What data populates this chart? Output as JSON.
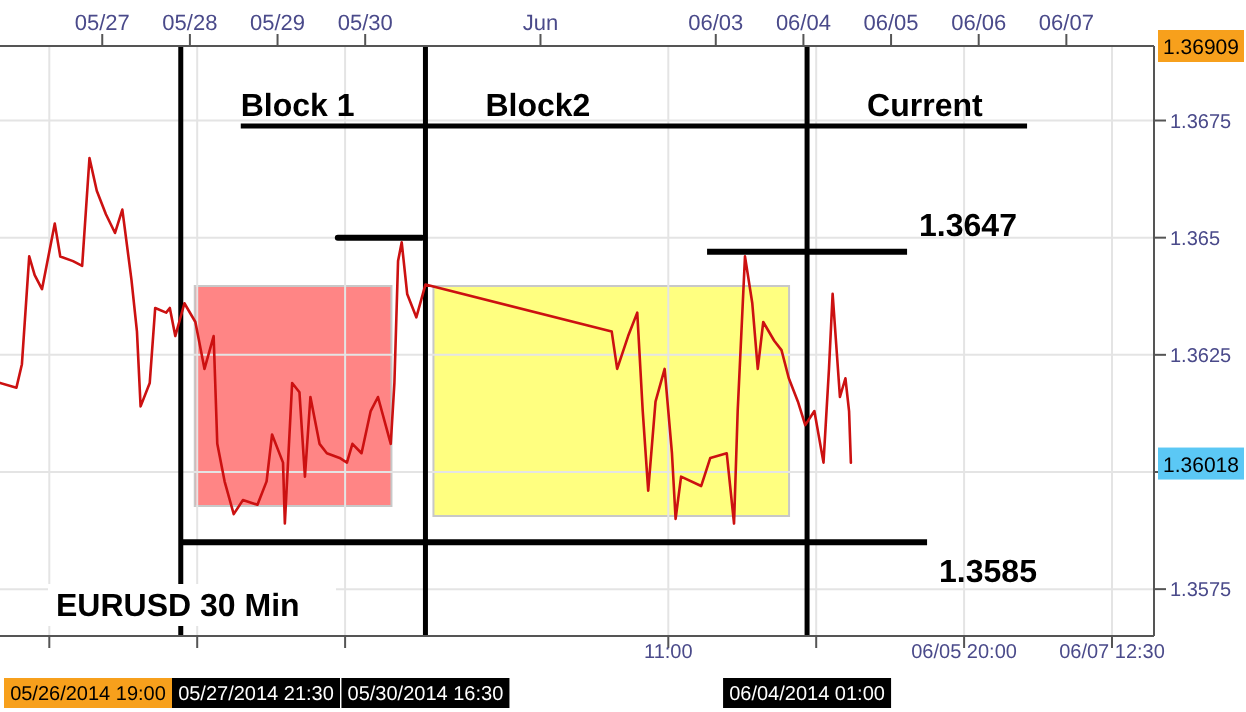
{
  "chart_data": {
    "type": "line",
    "title": "EURUSD 30 Min",
    "annotations": [
      "Block 1",
      "Block2",
      "Current",
      "05/26/2014 19:00",
      {
        "text": "1.36909",
        "y": 1.36909
      },
      {
        "text": "1.36018",
        "y": 1.36018
      }
    ],
    "x": [
      "2014-05-25T20:00",
      "2014-05-26T00:30",
      "2014-05-26T02:00",
      "2014-05-26T04:00",
      "2014-05-26T05:30",
      "2014-05-26T07:30",
      "2014-05-26T11:00",
      "2014-05-26T12:30",
      "2014-05-26T16:00",
      "2014-05-26T18:30",
      "2014-05-26T20:30",
      "2014-05-26T22:30",
      "2014-05-27T01:00",
      "2014-05-27T03:30",
      "2014-05-27T05:30",
      "2014-05-27T08:00",
      "2014-05-27T09:30",
      "2014-05-27T10:30",
      "2014-05-27T13:00",
      "2014-05-27T14:30",
      "2014-05-27T17:30",
      "2014-05-27T18:30",
      "2014-05-27T20:00",
      "2014-05-27T22:30",
      "2014-05-28T01:30",
      "2014-05-28T04:00",
      "2014-05-28T06:30",
      "2014-05-28T07:30",
      "2014-05-28T09:30",
      "2014-05-28T12:00",
      "2014-05-28T14:30",
      "2014-05-28T18:30",
      "2014-05-28T21:00",
      "2014-05-28T22:30",
      "2014-05-29T01:30",
      "2014-05-29T02:00",
      "2014-05-29T04:00",
      "2014-05-29T06:00",
      "2014-05-29T07:30",
      "2014-05-29T09:00",
      "2014-05-29T11:30",
      "2014-05-29T13:30",
      "2014-05-29T17:00",
      "2014-05-29T19:00",
      "2014-05-29T20:30",
      "2014-05-29T23:00",
      "2014-05-30T01:30",
      "2014-05-30T03:30",
      "2014-05-30T07:00",
      "2014-05-30T08:00",
      "2014-05-30T09:00",
      "2014-05-30T10:00",
      "2014-05-30T11:30",
      "2014-05-30T14:00",
      "2014-05-30T16:30",
      "2014-06-01T19:30",
      "2014-06-01T21:00",
      "2014-06-02T00:00",
      "2014-06-02T02:30",
      "2014-06-02T04:00",
      "2014-06-02T05:30",
      "2014-06-02T07:30",
      "2014-06-02T10:00",
      "2014-06-02T12:00",
      "2014-06-02T13:00",
      "2014-06-02T14:30",
      "2014-06-02T20:00",
      "2014-06-02T22:30",
      "2014-06-03T03:00",
      "2014-06-03T05:00",
      "2014-06-03T06:00",
      "2014-06-03T08:00",
      "2014-06-03T10:00",
      "2014-06-03T11:30",
      "2014-06-03T13:00",
      "2014-06-03T16:00",
      "2014-06-03T18:00",
      "2014-06-03T20:00",
      "2014-06-03T22:30",
      "2014-06-04T00:30",
      "2014-06-04T03:00",
      "2014-06-04T05:30",
      "2014-06-04T07:00",
      "2014-06-04T08:00",
      "2014-06-04T10:00",
      "2014-06-04T11:30",
      "2014-06-04T12:30",
      "2014-06-04T13:00"
    ],
    "series": [
      {
        "color": "#cc1111",
        "values": [
          1.3619,
          1.3618,
          1.3623,
          1.3646,
          1.3642,
          1.3639,
          1.3653,
          1.3646,
          1.3645,
          1.3644,
          1.3667,
          1.366,
          1.3655,
          1.3651,
          1.3656,
          1.3641,
          1.363,
          1.3614,
          1.3619,
          1.3635,
          1.3634,
          1.3635,
          1.3629,
          1.3636,
          1.3632,
          1.3622,
          1.3629,
          1.3606,
          1.3598,
          1.3591,
          1.3594,
          1.3593,
          1.3598,
          1.3608,
          1.3602,
          1.3589,
          1.3619,
          1.3617,
          1.3599,
          1.3616,
          1.3606,
          1.3604,
          1.3603,
          1.3602,
          1.3606,
          1.3604,
          1.3613,
          1.3616,
          1.3606,
          1.3619,
          1.3645,
          1.3649,
          1.3638,
          1.3633,
          1.364,
          1.363,
          1.3622,
          1.3629,
          1.3634,
          1.3613,
          1.3596,
          1.3615,
          1.3622,
          1.3604,
          1.359,
          1.3599,
          1.3597,
          1.3603,
          1.3604,
          1.3589,
          1.3613,
          1.3646,
          1.3636,
          1.3622,
          1.3632,
          1.3628,
          1.3626,
          1.362,
          1.3615,
          1.361,
          1.3613,
          1.3602,
          1.3622,
          1.3638,
          1.3616,
          1.362,
          1.3613,
          1.3602
        ]
      },
      {
        "type": "line",
        "color": "#000000",
        "x": [
          "2014-05-29T16:30",
          "2014-05-30T15:30"
        ],
        "values": [
          1.365,
          1.365
        ]
      }
    ],
    "xlim": [
      "2014-05-25T20:00",
      "2014-06-08T00:00"
    ],
    "xticks": [
      {
        "value": "2014-05-26T09:30",
        "label": null
      },
      {
        "value": "2014-05-28T02:00",
        "label": null
      },
      {
        "value": "2014-05-29T18:30",
        "label": null
      },
      {
        "value": "2014-06-02T11:00",
        "label": "11:00"
      },
      {
        "value": "2014-06-04T03:30",
        "label": null
      },
      {
        "value": "2014-06-05T20:00",
        "label": "06/05 20:00"
      },
      {
        "value": "2014-06-07T12:30",
        "label": "06/07 12:30"
      }
    ],
    "x2lim": [
      "2014-05-25T20:00",
      "2014-06-08T00:00"
    ],
    "x2ticks": [
      {
        "value": "2014-05-27",
        "label": "05/27"
      },
      {
        "value": "2014-05-28",
        "label": "05/28"
      },
      {
        "value": "2014-05-29",
        "label": "05/29"
      },
      {
        "value": "2014-05-30",
        "label": "05/30"
      },
      {
        "value": "2014-06-01",
        "label": "Jun"
      },
      {
        "value": "2014-06-03",
        "label": "06/03"
      },
      {
        "value": "2014-06-04",
        "label": "06/04"
      },
      {
        "value": "2014-06-05",
        "label": "06/05"
      },
      {
        "value": "2014-06-06",
        "label": "06/06"
      },
      {
        "value": "2014-06-07",
        "label": "06/07"
      }
    ],
    "ylim": [
      1.3565,
      1.36909
    ],
    "yticks": [
      1.3575,
      {
        "value": 1.36,
        "label": null
      },
      1.3625,
      1.365,
      1.3675
    ],
    "ref_lines": [
      {
        "axis": "x",
        "value": "2014-05-27T21:30",
        "label": "05/27/2014 21:30",
        "color": "#000000"
      },
      {
        "axis": "x",
        "value": "2014-05-30T16:30",
        "label": "05/30/2014 16:30",
        "color": "#000000"
      },
      {
        "axis": "x",
        "value": "2014-06-04T01:00",
        "label": "06/04/2014 01:00",
        "color": "#000000"
      },
      {
        "axis": "y",
        "value": 1.3647,
        "label": "1.3647",
        "color": "#000000"
      },
      {
        "axis": "y",
        "value": 1.3585,
        "label": "1.3585",
        "color": "#000000"
      }
    ],
    "grid": true
  }
}
